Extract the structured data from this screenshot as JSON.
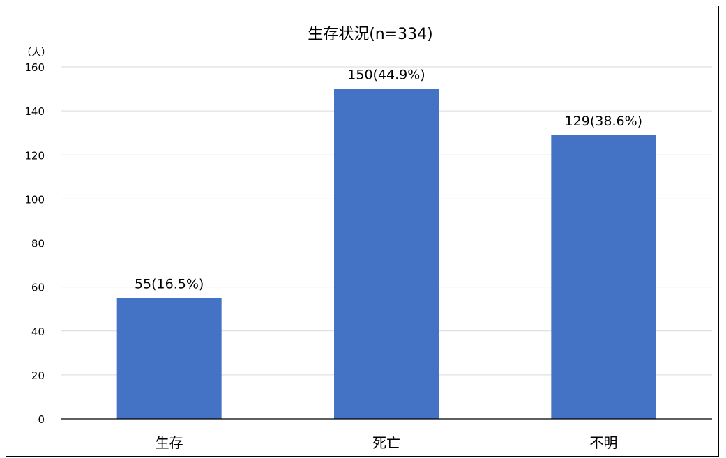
{
  "chart_data": {
    "type": "bar",
    "title": "生存状況(n=334)",
    "ylabel": "（人）",
    "xlabel": "",
    "categories": [
      "生存",
      "死亡",
      "不明"
    ],
    "values": [
      55,
      150,
      129
    ],
    "data_labels": [
      "55(16.5%)",
      "150(44.9%)",
      "129(38.6%)"
    ],
    "ylim": [
      0,
      160
    ],
    "yticks": [
      0,
      20,
      40,
      60,
      80,
      100,
      120,
      140,
      160
    ],
    "grid": true,
    "legend": "none",
    "colors": {
      "bar": "#4472C4",
      "grid": "#D9D9D9",
      "axis": "#000000"
    }
  }
}
